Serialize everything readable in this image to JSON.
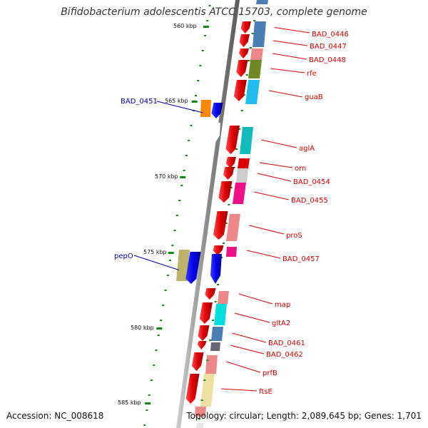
{
  "title": "Bifidobacterium adolescentis ATCC 15703, complete genome",
  "accession": "Accession: NC_008618",
  "topology": "Topology: circular; Length: 2,089,645 bp; Genes: 1,701",
  "ticks": [
    "560 kbp",
    "565 kbp",
    "570 kbp",
    "575 kbp",
    "580 kbp",
    "585 kbp"
  ],
  "genes": [
    {
      "label": "BAD_0446",
      "color": "#d80000",
      "strand": "plus"
    },
    {
      "label": "BAD_0447",
      "color": "#d80000",
      "strand": "plus"
    },
    {
      "label": "BAD_0448",
      "color": "#d80000",
      "strand": "plus"
    },
    {
      "label": "rfe",
      "color": "#d80000",
      "strand": "plus"
    },
    {
      "label": "guaB",
      "color": "#d80000",
      "strand": "plus"
    },
    {
      "label": "BAD_0451",
      "color": "#0000aa",
      "strand": "minus"
    },
    {
      "label": "aglA",
      "color": "#d80000",
      "strand": "plus"
    },
    {
      "label": "orn",
      "color": "#d80000",
      "strand": "plus"
    },
    {
      "label": "BAD_0454",
      "color": "#d80000",
      "strand": "plus"
    },
    {
      "label": "BAD_0455",
      "color": "#d80000",
      "strand": "plus"
    },
    {
      "label": "proS",
      "color": "#d80000",
      "strand": "plus"
    },
    {
      "label": "pepO",
      "color": "#0000aa",
      "strand": "minus"
    },
    {
      "label": "BAD_0457",
      "color": "#d80000",
      "strand": "plus"
    },
    {
      "label": "map",
      "color": "#d80000",
      "strand": "plus"
    },
    {
      "label": "gltA2",
      "color": "#d80000",
      "strand": "plus"
    },
    {
      "label": "BAD_0461",
      "color": "#d80000",
      "strand": "plus"
    },
    {
      "label": "BAD_0462",
      "color": "#d80000",
      "strand": "plus"
    },
    {
      "label": "prfB",
      "color": "#d80000",
      "strand": "plus"
    },
    {
      "label": "ftsE",
      "color": "#d80000",
      "strand": "plus"
    }
  ]
}
